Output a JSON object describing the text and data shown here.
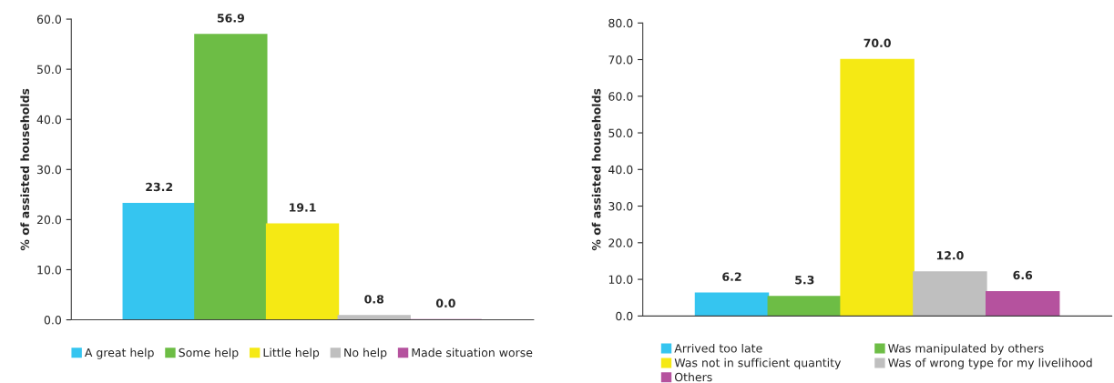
{
  "chart_data": [
    {
      "type": "bar",
      "ylabel": "% of assisted households",
      "categories": [
        null
      ],
      "data_labels": true,
      "legend": "bottom",
      "grid": false,
      "ylim": [
        0,
        60
      ],
      "yticks": [
        {
          "value": 0,
          "label": "0.0"
        },
        {
          "value": 10,
          "label": "10.0"
        },
        {
          "value": 20,
          "label": "20.0"
        },
        {
          "value": 30,
          "label": "30.0"
        },
        {
          "value": 40,
          "label": "40.0"
        },
        {
          "value": 50,
          "label": "50.0"
        },
        {
          "value": 60,
          "label": "60.0"
        }
      ],
      "series": [
        {
          "name": "A great help",
          "color": "#35c5f0",
          "values": [
            23.2
          ]
        },
        {
          "name": "Some help",
          "color": "#6dbd45",
          "values": [
            56.9
          ]
        },
        {
          "name": "Little help",
          "color": "#f5e914",
          "values": [
            19.1
          ]
        },
        {
          "name": "No help",
          "color": "#bfbfbf",
          "values": [
            0.8
          ]
        },
        {
          "name": "Made situation worse",
          "color": "#b5529e",
          "values": [
            0.0
          ],
          "value_labels": [
            "0.0"
          ]
        }
      ]
    },
    {
      "type": "bar",
      "ylabel": "% of assisted households",
      "categories": [
        null
      ],
      "data_labels": true,
      "legend": "bottom",
      "grid": false,
      "ylim": [
        0,
        80
      ],
      "yticks": [
        {
          "value": 0,
          "label": "0.0"
        },
        {
          "value": 10,
          "label": "10.0"
        },
        {
          "value": 20,
          "label": "20.0"
        },
        {
          "value": 30,
          "label": "30.0"
        },
        {
          "value": 40,
          "label": "40.0"
        },
        {
          "value": 50,
          "label": "50.0"
        },
        {
          "value": 60,
          "label": "60.0"
        },
        {
          "value": 70,
          "label": "70.0"
        },
        {
          "value": 80,
          "label": "80.0"
        }
      ],
      "series": [
        {
          "name": "Arrived too late",
          "color": "#35c5f0",
          "values": [
            6.2
          ]
        },
        {
          "name": "Was manipulated by others",
          "color": "#6dbd45",
          "values": [
            5.3
          ]
        },
        {
          "name": "Was not in sufficient quantity",
          "color": "#f5e914",
          "values": [
            70.0
          ],
          "value_labels": [
            "70.0"
          ]
        },
        {
          "name": "Was of wrong type for my livelihood",
          "color": "#bfbfbf",
          "values": [
            12.0
          ],
          "value_labels": [
            "12.0"
          ]
        },
        {
          "name": "Others",
          "color": "#b5529e",
          "values": [
            6.6
          ]
        }
      ]
    }
  ]
}
